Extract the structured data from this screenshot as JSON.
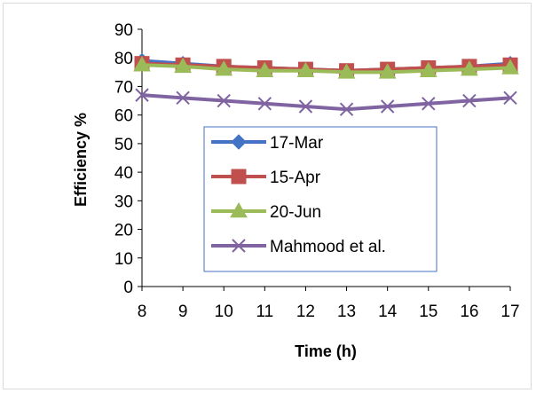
{
  "chart_data": {
    "type": "line",
    "title": "",
    "xlabel": "Time (h)",
    "ylabel": "Efficiency %",
    "x": [
      8,
      9,
      10,
      11,
      12,
      13,
      14,
      15,
      16,
      17
    ],
    "ylim": [
      0,
      90
    ],
    "yticks": [
      0,
      10,
      20,
      30,
      40,
      50,
      60,
      70,
      80,
      90
    ],
    "grid": false,
    "legend_position": "center-left",
    "series": [
      {
        "name": "17-Mar",
        "color": "#4472C4",
        "marker": "diamond",
        "values": [
          79,
          78,
          77,
          76.5,
          76,
          75.5,
          76,
          76.5,
          77,
          78
        ]
      },
      {
        "name": "15-Apr",
        "color": "#C0504D",
        "marker": "square",
        "values": [
          78,
          77.5,
          77,
          76.5,
          76,
          75.5,
          76,
          76.5,
          77,
          77.5
        ]
      },
      {
        "name": "20-Jun",
        "color": "#9BBB59",
        "marker": "triangle",
        "values": [
          77.5,
          77,
          76,
          75.5,
          75.5,
          75,
          75,
          75.5,
          76,
          76.5
        ]
      },
      {
        "name": "Mahmood et al.",
        "color": "#8064A2",
        "marker": "x",
        "values": [
          67,
          66,
          65,
          64,
          63,
          62,
          63,
          64,
          65,
          66
        ]
      }
    ]
  }
}
